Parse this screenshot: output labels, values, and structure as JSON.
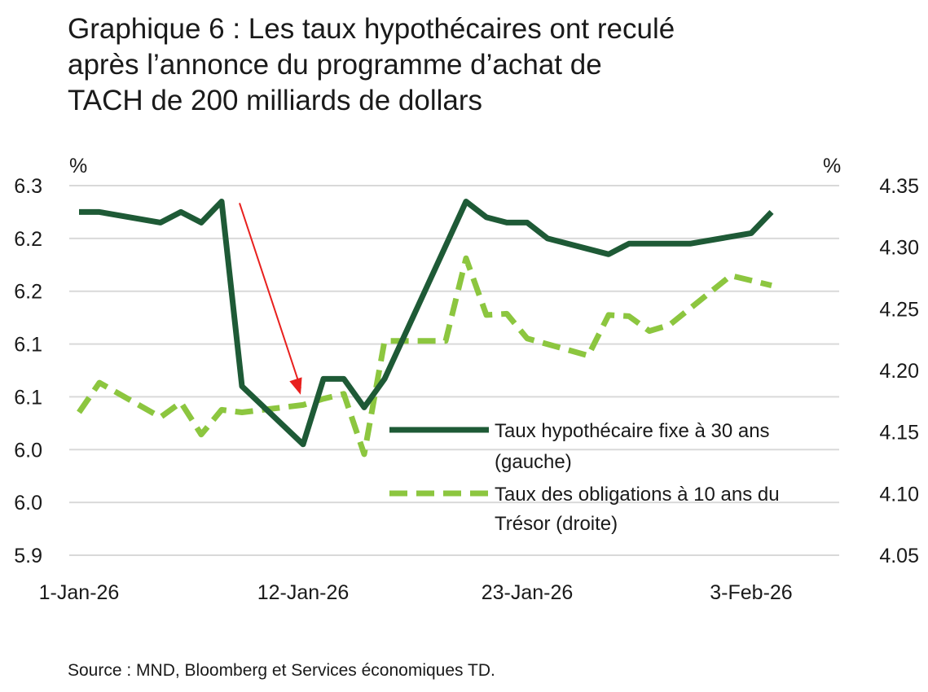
{
  "title_lines": [
    "Graphique 6 : Les taux hypothécaires ont reculé",
    "après l’annonce du programme d’achat de",
    "TACH de 200 milliards de dollars"
  ],
  "source": "Source : MND, Bloomberg et Services économiques TD.",
  "colors": {
    "mortgage": "#1e5a36",
    "treasury": "#8cc63f",
    "arrow": "#e8201e",
    "grid": "#d9d9d9"
  },
  "chart_data": {
    "type": "line",
    "title": "Graphique 6 : Les taux hypothécaires ont reculé après l’annonce du programme d’achat de TACH de 200 milliards de dollars",
    "left_axis": {
      "unit_label": "%",
      "tick_labels": [
        "6.3",
        "6.2",
        "6.2",
        "6.1",
        "6.1",
        "6.0",
        "6.0",
        "5.9"
      ],
      "range": [
        5.95,
        6.3
      ]
    },
    "right_axis": {
      "unit_label": "%",
      "tick_labels": [
        "4.35",
        "4.30",
        "4.25",
        "4.20",
        "4.15",
        "4.10",
        "4.05"
      ],
      "range": [
        4.05,
        4.35
      ]
    },
    "x_tick_labels": [
      "1-Jan-26",
      "12-Jan-26",
      "23-Jan-26",
      "3-Feb-26"
    ],
    "grid": "horizontal",
    "legend_placement": "lower-right",
    "series": [
      {
        "name": "Taux hypothécaire fixe à 30 ans (gauche)",
        "axis": "left",
        "style": "solid",
        "points": [
          {
            "date": "2026-01-01",
            "value": 6.275
          },
          {
            "date": "2026-01-02",
            "value": 6.275
          },
          {
            "date": "2026-01-05",
            "value": 6.265
          },
          {
            "date": "2026-01-06",
            "value": 6.275
          },
          {
            "date": "2026-01-07",
            "value": 6.265
          },
          {
            "date": "2026-01-08",
            "value": 6.285
          },
          {
            "date": "2026-01-09",
            "value": 6.11
          },
          {
            "date": "2026-01-12",
            "value": 6.055
          },
          {
            "date": "2026-01-13",
            "value": 6.117
          },
          {
            "date": "2026-01-14",
            "value": 6.117
          },
          {
            "date": "2026-01-15",
            "value": 6.09
          },
          {
            "date": "2026-01-16",
            "value": 6.117
          },
          {
            "date": "2026-01-20",
            "value": 6.285
          },
          {
            "date": "2026-01-21",
            "value": 6.27
          },
          {
            "date": "2026-01-22",
            "value": 6.265
          },
          {
            "date": "2026-01-23",
            "value": 6.265
          },
          {
            "date": "2026-01-24",
            "value": 6.25
          },
          {
            "date": "2026-01-27",
            "value": 6.235
          },
          {
            "date": "2026-01-28",
            "value": 6.245
          },
          {
            "date": "2026-01-30",
            "value": 6.245
          },
          {
            "date": "2026-01-31",
            "value": 6.245
          },
          {
            "date": "2026-02-03",
            "value": 6.255
          },
          {
            "date": "2026-02-04",
            "value": 6.275
          }
        ]
      },
      {
        "name": "Taux des obligations à 10 ans du Trésor (droite)",
        "axis": "right",
        "style": "dashed",
        "points": [
          {
            "date": "2026-01-01",
            "value": 4.166
          },
          {
            "date": "2026-01-02",
            "value": 4.19
          },
          {
            "date": "2026-01-05",
            "value": 4.162
          },
          {
            "date": "2026-01-06",
            "value": 4.174
          },
          {
            "date": "2026-01-07",
            "value": 4.148
          },
          {
            "date": "2026-01-08",
            "value": 4.168
          },
          {
            "date": "2026-01-09",
            "value": 4.166
          },
          {
            "date": "2026-01-12",
            "value": 4.172
          },
          {
            "date": "2026-01-13",
            "value": 4.177
          },
          {
            "date": "2026-01-14",
            "value": 4.181
          },
          {
            "date": "2026-01-15",
            "value": 4.132
          },
          {
            "date": "2026-01-16",
            "value": 4.224
          },
          {
            "date": "2026-01-17",
            "value": 4.224
          },
          {
            "date": "2026-01-19",
            "value": 4.224
          },
          {
            "date": "2026-01-20",
            "value": 4.291
          },
          {
            "date": "2026-01-21",
            "value": 4.245
          },
          {
            "date": "2026-01-22",
            "value": 4.246
          },
          {
            "date": "2026-01-23",
            "value": 4.226
          },
          {
            "date": "2026-01-26",
            "value": 4.212
          },
          {
            "date": "2026-01-27",
            "value": 4.245
          },
          {
            "date": "2026-01-28",
            "value": 4.244
          },
          {
            "date": "2026-01-29",
            "value": 4.232
          },
          {
            "date": "2026-01-30",
            "value": 4.237
          },
          {
            "date": "2026-02-02",
            "value": 4.277
          },
          {
            "date": "2026-02-04",
            "value": 4.269
          }
        ]
      }
    ],
    "annotation": {
      "type": "arrow",
      "from": {
        "date": "2026-01-08",
        "value": 6.285
      },
      "to": {
        "date": "2026-01-12",
        "value": 6.102
      }
    }
  }
}
